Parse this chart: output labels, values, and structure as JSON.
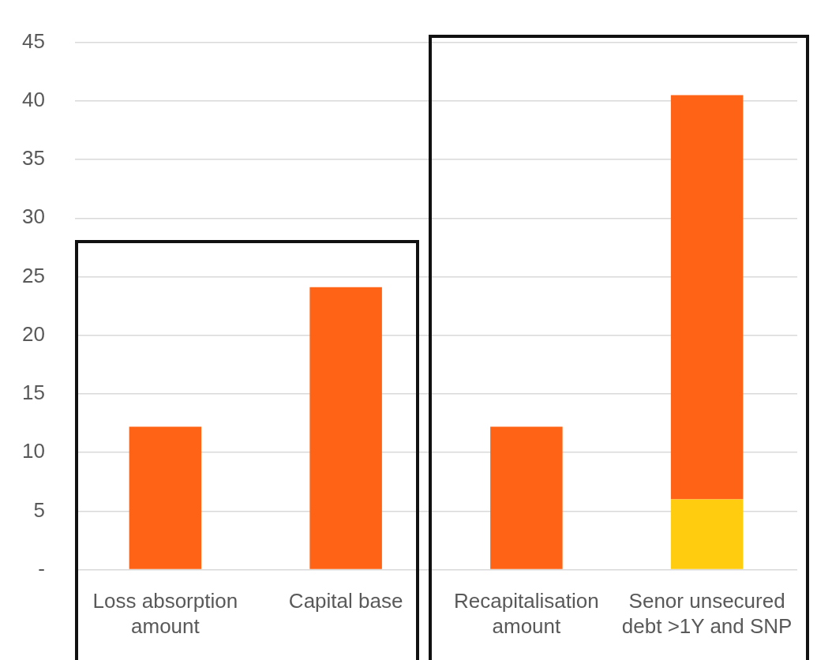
{
  "chart_data": {
    "type": "bar",
    "categories": [
      "Loss absorption amount",
      "Capital base",
      "Recapitalisation amount",
      "Senor unsecured debt >1Y and SNP"
    ],
    "stacked": true,
    "series": [
      {
        "color": "#ffcc0f",
        "values": [
          null,
          null,
          null,
          6.0
        ]
      },
      {
        "color": "#ff6315",
        "values": [
          12.2,
          24.1,
          12.2,
          34.5
        ]
      }
    ],
    "ylim": [
      0,
      45
    ],
    "yticks": [
      {
        "value": 0,
        "label": "-"
      },
      5,
      10,
      15,
      20,
      25,
      30,
      35,
      40,
      45
    ],
    "grid": "y",
    "legend": false
  }
}
